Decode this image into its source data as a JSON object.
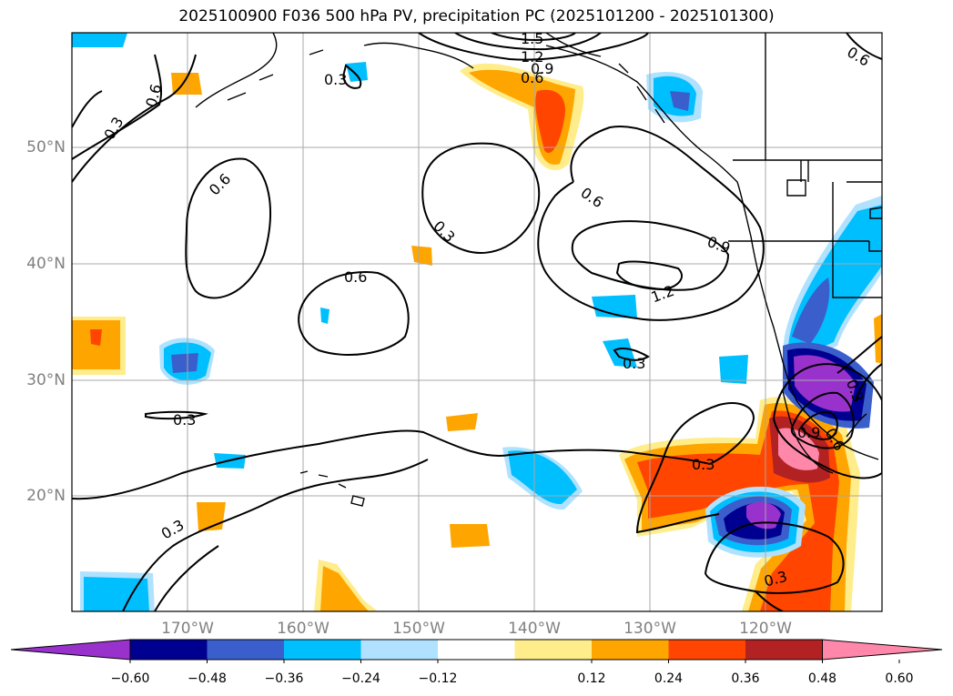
{
  "title": "2025100900 F036 500 hPa PV, precipitation PC (2025101200 - 2025101300)",
  "lon_labels": [
    "170°W",
    "160°W",
    "150°W",
    "140°W",
    "130°W",
    "120°W"
  ],
  "lat_labels": [
    "50°N",
    "40°N",
    "30°N",
    "20°N"
  ],
  "colorbar": {
    "ticks": [
      "−0.60",
      "−0.48",
      "−0.36",
      "−0.24",
      "−0.12",
      "0.12",
      "0.24",
      "0.36",
      "0.48",
      "0.60"
    ],
    "colors": [
      "#9932cc",
      "#000090",
      "#3a5fcd",
      "#00bfff",
      "#b0e2ff",
      "#ffffff",
      "#ffec8b",
      "#ffa500",
      "#ff4500",
      "#b22222",
      "#ff88aa"
    ]
  },
  "contour_labels": [
    "1.5",
    "1.2",
    "0.9",
    "0.6",
    "0.3",
    "0.3",
    "0.6",
    "0.6",
    "0.6",
    "0.3",
    "0.6",
    "0.6",
    "0.9",
    "1.2",
    "0.3",
    "0.3",
    "0.3",
    "0.3",
    "0.9",
    "0.6",
    "0.3",
    "0.3"
  ]
}
